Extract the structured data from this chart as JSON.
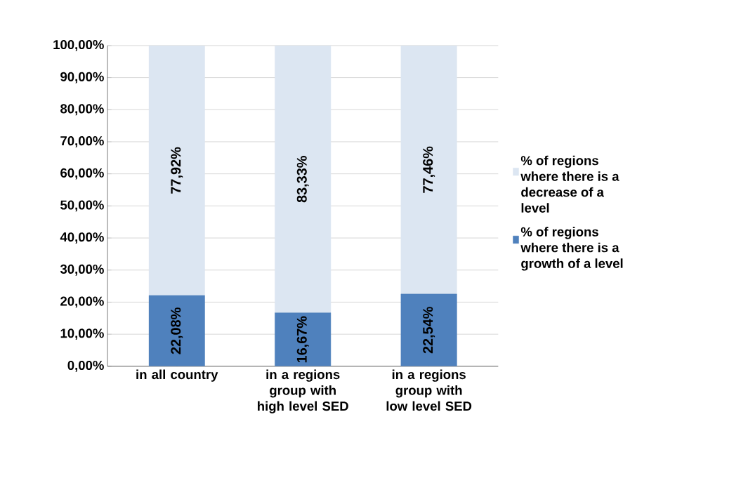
{
  "chart_data": {
    "type": "bar",
    "stacked": true,
    "grid": "y",
    "legend": "right",
    "categories": [
      "in all country",
      "in a regions group with high level SED",
      "in a regions group with low level SED"
    ],
    "ylim": [
      0,
      100
    ],
    "yticks": [
      {
        "value": 0,
        "label": "0,00%"
      },
      {
        "value": 10,
        "label": "10,00%"
      },
      {
        "value": 20,
        "label": "20,00%"
      },
      {
        "value": 30,
        "label": "30,00%"
      },
      {
        "value": 40,
        "label": "40,00%"
      },
      {
        "value": 50,
        "label": "50,00%"
      },
      {
        "value": 60,
        "label": "60,00%"
      },
      {
        "value": 70,
        "label": "70,00%"
      },
      {
        "value": 80,
        "label": "80,00%"
      },
      {
        "value": 90,
        "label": "90,00%"
      },
      {
        "value": 100,
        "label": "100,00%"
      }
    ],
    "series": [
      {
        "name": "% of regions where there is a growth of a level",
        "color": "#4f81bd",
        "values": [
          22.08,
          16.67,
          22.54
        ],
        "value_labels": [
          "22,08%",
          "16,67%",
          "22,54%"
        ]
      },
      {
        "name": "% of regions where there is a decrease of a level",
        "color": "#dce6f2",
        "values": [
          77.92,
          83.33,
          77.46
        ],
        "value_labels": [
          "77,92%",
          "83,33%",
          "77,46%"
        ]
      }
    ]
  }
}
